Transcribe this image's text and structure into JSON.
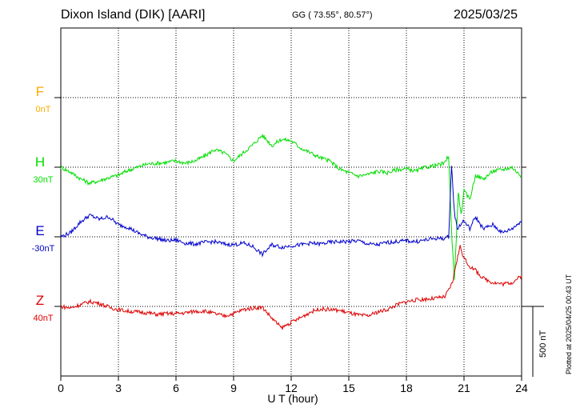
{
  "header": {
    "station": "Dixon Island (DIK)  [AARI]",
    "coords": "GG ( 73.55°,  80.57°)",
    "date": "2025/03/25"
  },
  "side_note": "Plotted at 2025/04/25 00:43 UT",
  "scale_label": "500 nT",
  "colors": {
    "F": "#ffaa00",
    "H": "#00dd00",
    "E": "#0000cc",
    "Z": "#dd0000"
  },
  "chart_data": {
    "type": "line",
    "xlabel": "U T (hour)",
    "x_ticks": [
      "0",
      "3",
      "6",
      "9",
      "12",
      "15",
      "18",
      "21",
      "24"
    ],
    "xlim": [
      0,
      24
    ],
    "grid": true,
    "channels": [
      {
        "name": "F",
        "offset_label": "0nT",
        "color": "#ffaa00",
        "values": []
      },
      {
        "name": "H",
        "offset_label": "30nT",
        "color": "#00dd00",
        "values": [
          [
            0,
            0
          ],
          [
            0.5,
            -6
          ],
          [
            1,
            -14
          ],
          [
            1.5,
            -20
          ],
          [
            2,
            -17
          ],
          [
            2.5,
            -13
          ],
          [
            3,
            -10
          ],
          [
            3.5,
            -4
          ],
          [
            4,
            0
          ],
          [
            4.5,
            4
          ],
          [
            5,
            5
          ],
          [
            5.5,
            6
          ],
          [
            6,
            8
          ],
          [
            6.5,
            5
          ],
          [
            7,
            8
          ],
          [
            7.5,
            14
          ],
          [
            8,
            22
          ],
          [
            8.5,
            18
          ],
          [
            9,
            8
          ],
          [
            9.5,
            18
          ],
          [
            10,
            28
          ],
          [
            10.5,
            40
          ],
          [
            11,
            27
          ],
          [
            11.5,
            35
          ],
          [
            12,
            33
          ],
          [
            12.5,
            24
          ],
          [
            13,
            18
          ],
          [
            13.5,
            12
          ],
          [
            14,
            8
          ],
          [
            14.5,
            -2
          ],
          [
            15,
            -7
          ],
          [
            15.5,
            -11
          ],
          [
            16,
            -9
          ],
          [
            16.5,
            -5
          ],
          [
            17,
            -7
          ],
          [
            17.5,
            -3
          ],
          [
            18,
            -2
          ],
          [
            18.5,
            -5
          ],
          [
            19,
            0
          ],
          [
            19.5,
            2
          ],
          [
            20,
            5
          ],
          [
            20.2,
            15
          ],
          [
            20.35,
            -80
          ],
          [
            20.5,
            -140
          ],
          [
            20.6,
            -90
          ],
          [
            20.7,
            -30
          ],
          [
            20.85,
            -60
          ],
          [
            21,
            -30
          ],
          [
            21.3,
            -40
          ],
          [
            21.6,
            -10
          ],
          [
            22,
            -15
          ],
          [
            22.5,
            -5
          ],
          [
            23,
            -3
          ],
          [
            23.5,
            0
          ],
          [
            24,
            -12
          ]
        ]
      },
      {
        "name": "E",
        "offset_label": "-30nT",
        "color": "#0000cc",
        "values": [
          [
            0,
            0
          ],
          [
            0.5,
            5
          ],
          [
            1,
            18
          ],
          [
            1.5,
            27
          ],
          [
            2,
            22
          ],
          [
            2.5,
            25
          ],
          [
            3,
            15
          ],
          [
            3.5,
            12
          ],
          [
            4,
            5
          ],
          [
            4.5,
            0
          ],
          [
            5,
            -2
          ],
          [
            5.5,
            -5
          ],
          [
            6,
            -4
          ],
          [
            6.5,
            -8
          ],
          [
            7,
            -9
          ],
          [
            7.5,
            -7
          ],
          [
            8,
            -6
          ],
          [
            8.5,
            -9
          ],
          [
            9,
            -10
          ],
          [
            9.5,
            -8
          ],
          [
            10,
            -12
          ],
          [
            10.5,
            -22
          ],
          [
            11,
            -10
          ],
          [
            11.5,
            -13
          ],
          [
            12,
            -11
          ],
          [
            12.5,
            -10
          ],
          [
            13,
            -8
          ],
          [
            13.5,
            -9
          ],
          [
            14,
            -7
          ],
          [
            14.5,
            -6
          ],
          [
            15,
            -6
          ],
          [
            15.5,
            -5
          ],
          [
            16,
            -9
          ],
          [
            16.5,
            -10
          ],
          [
            17,
            -7
          ],
          [
            17.5,
            -6
          ],
          [
            18,
            -5
          ],
          [
            18.5,
            -6
          ],
          [
            19,
            -4
          ],
          [
            19.5,
            -2
          ],
          [
            20,
            -2
          ],
          [
            20.2,
            0
          ],
          [
            20.35,
            90
          ],
          [
            20.5,
            30
          ],
          [
            20.65,
            10
          ],
          [
            20.8,
            15
          ],
          [
            21,
            20
          ],
          [
            21.3,
            10
          ],
          [
            21.6,
            25
          ],
          [
            22,
            10
          ],
          [
            22.5,
            15
          ],
          [
            23,
            5
          ],
          [
            23.5,
            10
          ],
          [
            24,
            20
          ]
        ]
      },
      {
        "name": "Z",
        "offset_label": "40nT",
        "color": "#dd0000",
        "values": [
          [
            0,
            0
          ],
          [
            0.5,
            -2
          ],
          [
            1,
            2
          ],
          [
            1.5,
            6
          ],
          [
            2,
            4
          ],
          [
            2.5,
            -1
          ],
          [
            3,
            -4
          ],
          [
            3.5,
            -6
          ],
          [
            4,
            -7
          ],
          [
            4.5,
            -8
          ],
          [
            5,
            -10
          ],
          [
            5.5,
            -9
          ],
          [
            6,
            -9
          ],
          [
            6.5,
            -8
          ],
          [
            7,
            -6
          ],
          [
            7.5,
            -6
          ],
          [
            8,
            -9
          ],
          [
            8.5,
            -12
          ],
          [
            9,
            -9
          ],
          [
            9.5,
            -4
          ],
          [
            10,
            -2
          ],
          [
            10.5,
            -1
          ],
          [
            11,
            -15
          ],
          [
            11.5,
            -27
          ],
          [
            12,
            -20
          ],
          [
            12.5,
            -14
          ],
          [
            13,
            -7
          ],
          [
            13.5,
            -3
          ],
          [
            14,
            -4
          ],
          [
            14.5,
            -5
          ],
          [
            15,
            -8
          ],
          [
            15.5,
            -11
          ],
          [
            16,
            -12
          ],
          [
            16.5,
            -7
          ],
          [
            17,
            -4
          ],
          [
            17.5,
            2
          ],
          [
            18,
            6
          ],
          [
            18.5,
            8
          ],
          [
            19,
            9
          ],
          [
            19.5,
            10
          ],
          [
            20,
            12
          ],
          [
            20.2,
            20
          ],
          [
            20.4,
            30
          ],
          [
            20.6,
            55
          ],
          [
            20.8,
            75
          ],
          [
            21,
            60
          ],
          [
            21.3,
            50
          ],
          [
            21.6,
            45
          ],
          [
            22,
            35
          ],
          [
            22.5,
            30
          ],
          [
            23,
            28
          ],
          [
            23.5,
            30
          ],
          [
            24,
            38
          ]
        ]
      }
    ],
    "scale_nT": 500
  }
}
